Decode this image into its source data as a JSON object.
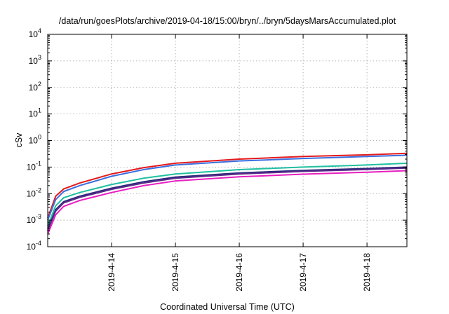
{
  "chart_data": {
    "type": "line",
    "title": "/data/run/goesPlots/archive/2019-04-18/15:00/bryn/../bryn/5daysMarsAccumulated.plot",
    "xlabel": "Coordinated Universal Time (UTC)",
    "ylabel": "cSv",
    "yscale": "log",
    "ylim": [
      0.0001,
      10000
    ],
    "xlim": [
      "2019-04-13 00:00",
      "2019-04-18 15:00"
    ],
    "grid": true,
    "legend": "none",
    "y_ticks": [
      {
        "base": "10",
        "exp": "-4"
      },
      {
        "base": "10",
        "exp": "-3"
      },
      {
        "base": "10",
        "exp": "-2"
      },
      {
        "base": "10",
        "exp": "-1"
      },
      {
        "base": "10",
        "exp": "0"
      },
      {
        "base": "10",
        "exp": "1"
      },
      {
        "base": "10",
        "exp": "2"
      },
      {
        "base": "10",
        "exp": "3"
      },
      {
        "base": "10",
        "exp": "4"
      }
    ],
    "x_ticks": [
      "2019-4-14",
      "2019-4-15",
      "2019-4-16",
      "2019-4-17",
      "2019-4-18"
    ],
    "series": [
      {
        "color": "#e41a1c",
        "x": [
          "2019-04-13 00:00",
          "2019-04-13 03:00",
          "2019-04-13 06:00",
          "2019-04-13 12:00",
          "2019-04-14 00:00",
          "2019-04-14 12:00",
          "2019-04-15 00:00",
          "2019-04-16 00:00",
          "2019-04-17 00:00",
          "2019-04-18 00:00",
          "2019-04-18 15:00"
        ],
        "y": [
          0.0012,
          0.008,
          0.015,
          0.025,
          0.055,
          0.095,
          0.14,
          0.2,
          0.25,
          0.29,
          0.33
        ]
      },
      {
        "color": "#3b6fe0",
        "x": [
          "2019-04-13 00:00",
          "2019-04-13 03:00",
          "2019-04-13 06:00",
          "2019-04-13 12:00",
          "2019-04-14 00:00",
          "2019-04-14 12:00",
          "2019-04-15 00:00",
          "2019-04-16 00:00",
          "2019-04-17 00:00",
          "2019-04-18 00:00",
          "2019-04-18 15:00"
        ],
        "y": [
          0.001,
          0.006,
          0.012,
          0.02,
          0.045,
          0.08,
          0.12,
          0.17,
          0.21,
          0.25,
          0.28
        ]
      },
      {
        "color": "#20c0a0",
        "x": [
          "2019-04-13 00:00",
          "2019-04-13 03:00",
          "2019-04-13 06:00",
          "2019-04-13 12:00",
          "2019-04-14 00:00",
          "2019-04-14 12:00",
          "2019-04-15 00:00",
          "2019-04-16 00:00",
          "2019-04-17 00:00",
          "2019-04-18 00:00",
          "2019-04-18 15:00"
        ],
        "y": [
          0.0006,
          0.0035,
          0.007,
          0.011,
          0.022,
          0.038,
          0.055,
          0.08,
          0.1,
          0.12,
          0.14
        ]
      },
      {
        "color": "#2a2a7a",
        "x": [
          "2019-04-13 00:00",
          "2019-04-13 03:00",
          "2019-04-13 06:00",
          "2019-04-13 12:00",
          "2019-04-14 00:00",
          "2019-04-14 12:00",
          "2019-04-15 00:00",
          "2019-04-16 00:00",
          "2019-04-17 00:00",
          "2019-04-18 00:00",
          "2019-04-18 15:00"
        ],
        "y": [
          0.00045,
          0.0025,
          0.005,
          0.008,
          0.016,
          0.028,
          0.042,
          0.06,
          0.075,
          0.088,
          0.1
        ]
      },
      {
        "color": "#5a2a8a",
        "x": [
          "2019-04-13 00:00",
          "2019-04-13 03:00",
          "2019-04-13 06:00",
          "2019-04-13 12:00",
          "2019-04-14 00:00",
          "2019-04-14 12:00",
          "2019-04-15 00:00",
          "2019-04-16 00:00",
          "2019-04-17 00:00",
          "2019-04-18 00:00",
          "2019-04-18 15:00"
        ],
        "y": [
          0.0004,
          0.0022,
          0.0045,
          0.0072,
          0.0145,
          0.025,
          0.038,
          0.055,
          0.069,
          0.081,
          0.092
        ]
      },
      {
        "color": "#e81ec0",
        "x": [
          "2019-04-13 00:00",
          "2019-04-13 03:00",
          "2019-04-13 06:00",
          "2019-04-13 12:00",
          "2019-04-14 00:00",
          "2019-04-14 12:00",
          "2019-04-15 00:00",
          "2019-04-16 00:00",
          "2019-04-17 00:00",
          "2019-04-18 00:00",
          "2019-04-18 15:00"
        ],
        "y": [
          0.0003,
          0.0016,
          0.0033,
          0.0055,
          0.011,
          0.02,
          0.03,
          0.043,
          0.054,
          0.064,
          0.073
        ]
      }
    ]
  }
}
